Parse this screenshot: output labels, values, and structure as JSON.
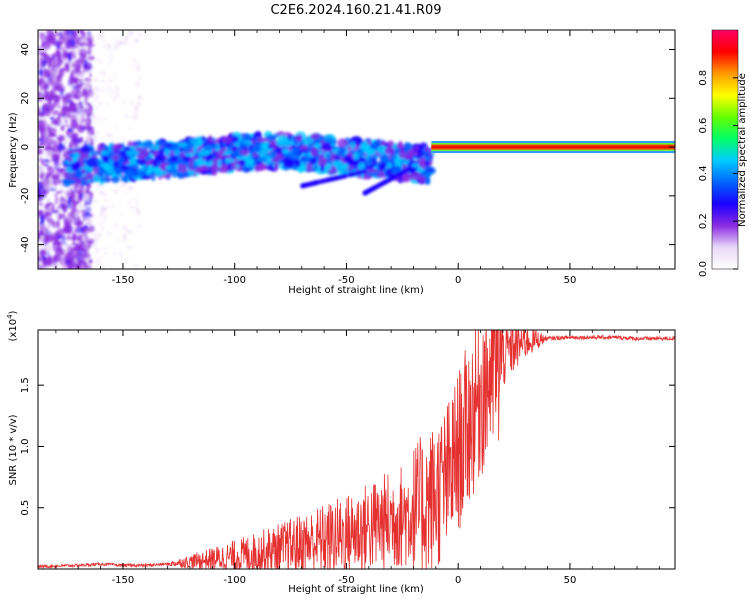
{
  "title": "C2E6.2024.160.21.41.R09",
  "chart_data": [
    {
      "type": "heatmap",
      "name": "spectrogram",
      "xlabel": "Height of straight line (km)",
      "ylabel": "Frequency (Hz)",
      "xlim": [
        -188,
        97
      ],
      "ylim": [
        -50,
        48
      ],
      "xticks": [
        -150,
        -100,
        -50,
        0,
        50
      ],
      "yticks": [
        -40,
        -20,
        0,
        20,
        40
      ],
      "colorbar": {
        "label": "Normalized spectral amplitude",
        "range": [
          0,
          1
        ],
        "ticks": [
          0.0,
          0.2,
          0.4,
          0.6,
          0.8
        ],
        "stops": [
          "#ffffff",
          "#e8d8f8",
          "#8a2be2",
          "#1a00ff",
          "#0066ff",
          "#00ccff",
          "#00ff66",
          "#66ff00",
          "#ffff00",
          "#ff9900",
          "#ff0000",
          "#ff0066"
        ]
      },
      "features": [
        {
          "name": "main-tone-band",
          "x_range": [
            -12,
            97
          ],
          "freq": 0,
          "amplitude": 0.9
        },
        {
          "name": "scattered-energy",
          "x_range": [
            -175,
            -12
          ],
          "freq_center": [
            -8,
            8
          ],
          "amplitude": 0.3
        }
      ]
    },
    {
      "type": "line",
      "name": "snr",
      "xlabel": "Height of straight line (km)",
      "ylabel": "SNR (10 * v/v)",
      "exponent_label": "(x10",
      "exponent_sup": "4",
      "exponent_close": ")",
      "xlim": [
        -188,
        97
      ],
      "ylim": [
        0,
        1.95
      ],
      "xticks": [
        -150,
        -100,
        -50,
        0,
        50
      ],
      "yticks": [
        0.5,
        1.0,
        1.5
      ],
      "ytick_labels": [
        "0.5",
        "1.0",
        "1.5"
      ],
      "color": "#e53030",
      "x": [
        -188,
        -170,
        -160,
        -150,
        -140,
        -130,
        -120,
        -110,
        -100,
        -90,
        -80,
        -70,
        -60,
        -50,
        -40,
        -30,
        -20,
        -15,
        -10,
        -5,
        0,
        5,
        10,
        15,
        20,
        25,
        30,
        40,
        50,
        60,
        70,
        80,
        90,
        97
      ],
      "y": [
        0.02,
        0.03,
        0.04,
        0.03,
        0.03,
        0.04,
        0.06,
        0.08,
        0.1,
        0.13,
        0.16,
        0.2,
        0.24,
        0.28,
        0.34,
        0.4,
        0.46,
        0.52,
        0.6,
        0.72,
        0.95,
        1.2,
        1.45,
        1.62,
        1.75,
        1.82,
        1.86,
        1.88,
        1.89,
        1.89,
        1.89,
        1.88,
        1.88,
        1.88
      ]
    }
  ]
}
